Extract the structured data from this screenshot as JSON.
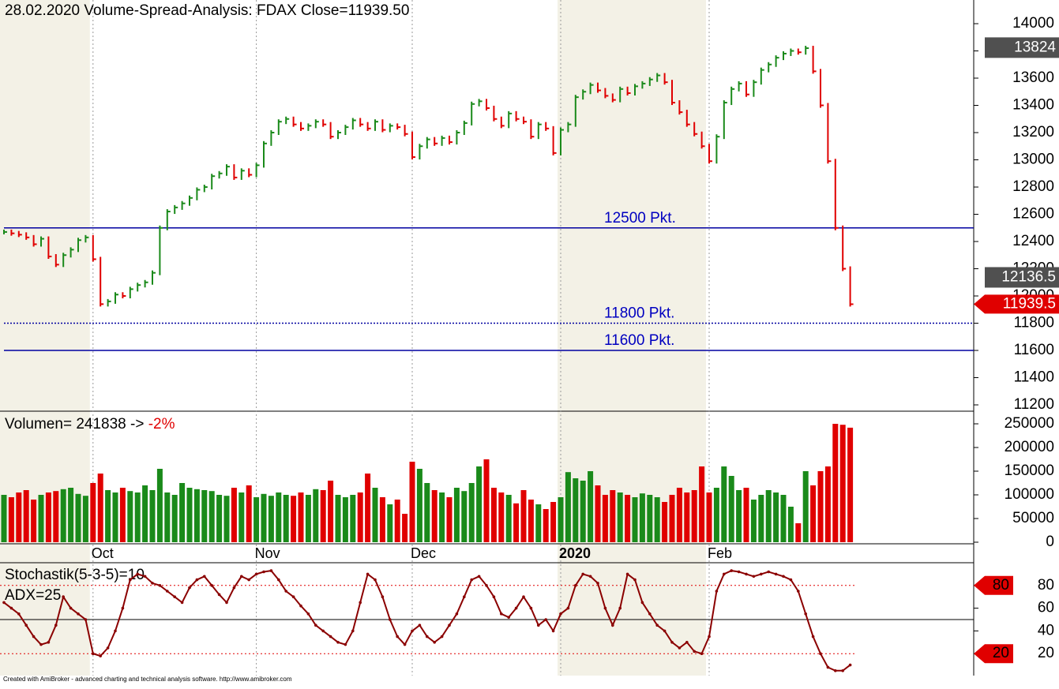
{
  "chart_data": [
    {
      "type": "price",
      "title": "28.02.2020  Volume-Spread-Analysis: FDAX   Close=11939.50",
      "values": [
        12470,
        12460,
        12450,
        12430,
        12380,
        12420,
        12290,
        12230,
        12300,
        12340,
        12410,
        12430,
        12270,
        11940,
        11960,
        12010,
        12000,
        12050,
        12080,
        12100,
        12170,
        12500,
        12620,
        12650,
        12680,
        12720,
        12780,
        12800,
        12880,
        12900,
        12950,
        12870,
        12920,
        12890,
        12960,
        13120,
        13200,
        13280,
        13300,
        13260,
        13230,
        13250,
        13280,
        13260,
        13170,
        13200,
        13240,
        13290,
        13260,
        13230,
        13280,
        13220,
        13250,
        13240,
        13190,
        13020,
        13100,
        13150,
        13120,
        13160,
        13130,
        13200,
        13270,
        13410,
        13430,
        13380,
        13300,
        13250,
        13340,
        13300,
        13280,
        13170,
        13260,
        13230,
        13050,
        13220,
        13260,
        13460,
        13500,
        13550,
        13510,
        13470,
        13440,
        13520,
        13490,
        13540,
        13560,
        13590,
        13620,
        13570,
        13420,
        13350,
        13260,
        13190,
        13100,
        12990,
        13170,
        13420,
        13520,
        13560,
        13480,
        13570,
        13660,
        13700,
        13750,
        13780,
        13800,
        13790,
        13820,
        13650,
        13400,
        12990,
        12500,
        12200,
        11939.5
      ],
      "up_color": "#1a8a1a",
      "down_color": "#e00000",
      "ylim": [
        11200,
        14000
      ],
      "yticks": [
        11200,
        11400,
        11600,
        11800,
        12000,
        12200,
        12400,
        12600,
        12800,
        13000,
        13200,
        13400,
        13600,
        13800,
        14000
      ],
      "levels": [
        {
          "value": 12500,
          "label": "12500 Pkt.",
          "style": "solid"
        },
        {
          "value": 11800,
          "label": "11800 Pkt.",
          "style": "dotted"
        },
        {
          "value": 11600,
          "label": "11600 Pkt.",
          "style": "solid"
        }
      ],
      "price_markers": [
        13824,
        12136.5
      ],
      "close_label": "11939.5",
      "xticks": [
        {
          "value": 12,
          "label": "Oct"
        },
        {
          "value": 34,
          "label": "Nov"
        },
        {
          "value": 55,
          "label": "Dec"
        },
        {
          "value": 75,
          "label": "2020"
        },
        {
          "value": 95,
          "label": "Feb"
        }
      ]
    },
    {
      "type": "bar",
      "title": "Volumen= 241838 -> ",
      "change": "-2%",
      "values": [
        100000,
        95000,
        105000,
        110000,
        90000,
        100000,
        105000,
        108000,
        112000,
        115000,
        102000,
        98000,
        125000,
        145000,
        110000,
        105000,
        115000,
        108000,
        105000,
        120000,
        110000,
        155000,
        105000,
        100000,
        125000,
        115000,
        112000,
        110000,
        108000,
        100000,
        98000,
        115000,
        105000,
        120000,
        95000,
        102000,
        98000,
        105000,
        100000,
        98000,
        105000,
        100000,
        112000,
        110000,
        130000,
        100000,
        95000,
        100000,
        105000,
        145000,
        115000,
        95000,
        80000,
        90000,
        60000,
        170000,
        155000,
        125000,
        110000,
        105000,
        95000,
        115000,
        108000,
        125000,
        160000,
        175000,
        115000,
        105000,
        100000,
        82000,
        110000,
        90000,
        80000,
        70000,
        85000,
        95000,
        148000,
        135000,
        130000,
        150000,
        120000,
        100000,
        110000,
        105000,
        100000,
        95000,
        103000,
        100000,
        95000,
        85000,
        100000,
        115000,
        105000,
        110000,
        160000,
        105000,
        115000,
        160000,
        140000,
        110000,
        115000,
        90000,
        100000,
        110000,
        105000,
        100000,
        75000,
        40000,
        150000,
        120000,
        150000,
        160000,
        250000,
        248000,
        241838
      ],
      "ylim": [
        0,
        250000
      ],
      "yticks": [
        0,
        50000,
        100000,
        150000,
        200000,
        250000
      ]
    },
    {
      "type": "line",
      "title": "Stochastik(5-3-5)=10",
      "subtitle": "ADX=25",
      "color": "#8b0000",
      "values": [
        65,
        60,
        55,
        45,
        35,
        28,
        30,
        45,
        70,
        60,
        55,
        50,
        20,
        18,
        25,
        40,
        60,
        85,
        90,
        88,
        82,
        80,
        75,
        70,
        65,
        78,
        85,
        88,
        80,
        72,
        65,
        78,
        88,
        85,
        90,
        92,
        93,
        85,
        75,
        70,
        62,
        55,
        45,
        40,
        35,
        30,
        28,
        40,
        65,
        90,
        85,
        70,
        50,
        35,
        28,
        40,
        45,
        35,
        30,
        35,
        45,
        55,
        70,
        85,
        88,
        80,
        70,
        55,
        52,
        60,
        70,
        60,
        45,
        50,
        40,
        55,
        60,
        80,
        90,
        88,
        82,
        60,
        45,
        60,
        90,
        85,
        65,
        55,
        45,
        40,
        30,
        25,
        30,
        22,
        20,
        35,
        75,
        90,
        93,
        92,
        90,
        88,
        90,
        92,
        90,
        88,
        85,
        75,
        55,
        35,
        20,
        8,
        5,
        5,
        10
      ],
      "ylim": [
        0,
        100
      ],
      "yticks": [
        20,
        40,
        60,
        80
      ],
      "levels": [
        80,
        20
      ]
    }
  ],
  "footer": "Created with AmiBroker - advanced charting and technical analysis software. http://www.amibroker.com"
}
